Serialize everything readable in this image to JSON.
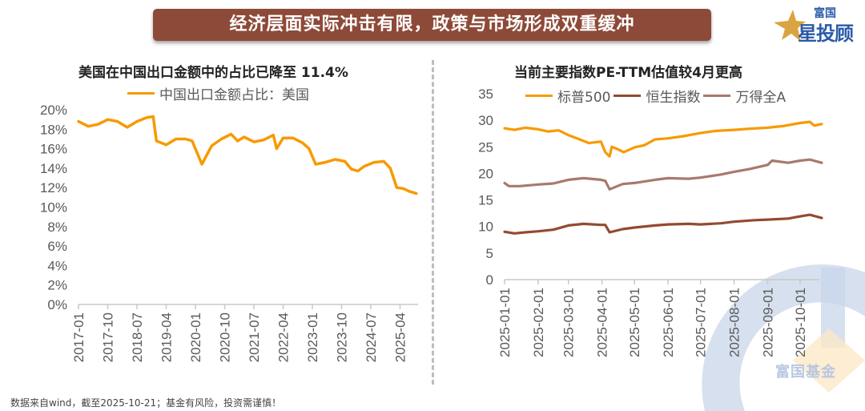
{
  "banner": {
    "title": "经济层面实际冲击有限，政策与市场形成双重缓冲"
  },
  "logo": {
    "line1": "富国",
    "line2": "星投顾",
    "star_color": "#d9a441",
    "text_color": "#2a5ba8"
  },
  "watermark": {
    "text": "富国基金"
  },
  "footer": {
    "text": "数据来自wind，截至2025-10-21；基金有风险，投资需谨慎！"
  },
  "colors": {
    "orange": "#f79a00",
    "dark_brown": "#944a30",
    "light_brown": "#a87a6c",
    "banner": "#8e4a38"
  },
  "chart_data": [
    {
      "type": "line",
      "title": "美国在中国出口金额中的占比已降至 11.4%",
      "xlabel": "",
      "ylabel": "",
      "ylim": [
        0,
        20
      ],
      "yticks": [
        "0%",
        "2%",
        "4%",
        "6%",
        "8%",
        "10%",
        "12%",
        "14%",
        "16%",
        "18%",
        "20%"
      ],
      "xticks": [
        "2017-01",
        "2017-10",
        "2018-07",
        "2019-04",
        "2020-01",
        "2020-10",
        "2021-07",
        "2022-04",
        "2023-01",
        "2023-10",
        "2024-07",
        "2025-04"
      ],
      "legend": "top-center",
      "grid": false,
      "series": [
        {
          "name": "中国出口金额占比：美国",
          "color": "#f79a00",
          "x": [
            "2017-01",
            "2017-04",
            "2017-07",
            "2017-10",
            "2018-01",
            "2018-04",
            "2018-07",
            "2018-10",
            "2018-12",
            "2019-01",
            "2019-04",
            "2019-07",
            "2019-10",
            "2019-12",
            "2020-03",
            "2020-06",
            "2020-09",
            "2020-12",
            "2021-02",
            "2021-04",
            "2021-07",
            "2021-10",
            "2022-01",
            "2022-02",
            "2022-04",
            "2022-07",
            "2022-10",
            "2022-12",
            "2023-02",
            "2023-05",
            "2023-08",
            "2023-11",
            "2024-01",
            "2024-03",
            "2024-05",
            "2024-08",
            "2024-11",
            "2025-01",
            "2025-03",
            "2025-05",
            "2025-07",
            "2025-09"
          ],
          "values": [
            18.8,
            18.3,
            18.5,
            19.0,
            18.8,
            18.2,
            18.8,
            19.2,
            19.3,
            16.8,
            16.4,
            17.0,
            17.0,
            16.8,
            14.4,
            16.3,
            17.0,
            17.5,
            16.8,
            17.2,
            16.7,
            16.9,
            17.4,
            16.0,
            17.1,
            17.1,
            16.6,
            16.0,
            14.4,
            14.6,
            14.9,
            14.7,
            13.9,
            13.7,
            14.2,
            14.6,
            14.7,
            14.0,
            12.0,
            11.9,
            11.6,
            11.4
          ]
        }
      ]
    },
    {
      "type": "line",
      "title": "当前主要指数PE-TTM估值较4月更高",
      "xlabel": "",
      "ylabel": "",
      "ylim": [
        0,
        35
      ],
      "yticks": [
        "0",
        "5",
        "10",
        "15",
        "20",
        "25",
        "30",
        "35"
      ],
      "xticks": [
        "2025-01-01",
        "2025-02-01",
        "2025-03-01",
        "2025-04-01",
        "2025-05-01",
        "2025-06-01",
        "2025-07-01",
        "2025-08-01",
        "2025-09-01",
        "2025-10-01"
      ],
      "legend": "top-right",
      "grid": false,
      "series": [
        {
          "name": "标普500",
          "color": "#f79a00",
          "x": [
            "2025-01-01",
            "2025-01-10",
            "2025-01-20",
            "2025-02-01",
            "2025-02-10",
            "2025-02-20",
            "2025-03-01",
            "2025-03-10",
            "2025-03-20",
            "2025-03-31",
            "2025-04-04",
            "2025-04-08",
            "2025-04-10",
            "2025-04-15",
            "2025-04-21",
            "2025-05-01",
            "2025-05-10",
            "2025-05-20",
            "2025-06-01",
            "2025-06-15",
            "2025-07-01",
            "2025-07-15",
            "2025-08-01",
            "2025-08-15",
            "2025-09-01",
            "2025-09-15",
            "2025-10-01",
            "2025-10-10",
            "2025-10-14",
            "2025-10-21"
          ],
          "values": [
            28.5,
            28.2,
            28.6,
            28.3,
            27.9,
            28.1,
            27.2,
            26.5,
            25.7,
            26.0,
            24.0,
            23.2,
            25.0,
            24.6,
            24.0,
            24.9,
            25.3,
            26.4,
            26.6,
            27.0,
            27.6,
            28.0,
            28.2,
            28.4,
            28.6,
            28.9,
            29.5,
            29.7,
            29.0,
            29.3
          ]
        },
        {
          "name": "恒生指数",
          "color": "#944a30",
          "x": [
            "2025-01-01",
            "2025-01-10",
            "2025-01-20",
            "2025-02-01",
            "2025-02-15",
            "2025-03-01",
            "2025-03-15",
            "2025-03-31",
            "2025-04-04",
            "2025-04-08",
            "2025-04-20",
            "2025-05-01",
            "2025-05-20",
            "2025-06-01",
            "2025-06-20",
            "2025-07-01",
            "2025-07-20",
            "2025-08-01",
            "2025-08-20",
            "2025-09-01",
            "2025-09-20",
            "2025-10-01",
            "2025-10-10",
            "2025-10-21"
          ],
          "values": [
            9.0,
            8.7,
            8.9,
            9.1,
            9.4,
            10.2,
            10.5,
            10.3,
            10.3,
            8.9,
            9.5,
            9.8,
            10.2,
            10.4,
            10.5,
            10.4,
            10.6,
            10.9,
            11.2,
            11.3,
            11.5,
            11.9,
            12.2,
            11.6
          ]
        },
        {
          "name": "万得全A",
          "color": "#a87a6c",
          "x": [
            "2025-01-01",
            "2025-01-05",
            "2025-01-15",
            "2025-02-01",
            "2025-02-15",
            "2025-03-01",
            "2025-03-15",
            "2025-03-31",
            "2025-04-04",
            "2025-04-08",
            "2025-04-20",
            "2025-05-01",
            "2025-05-20",
            "2025-06-01",
            "2025-06-20",
            "2025-07-01",
            "2025-07-20",
            "2025-08-01",
            "2025-08-15",
            "2025-09-01",
            "2025-09-05",
            "2025-09-20",
            "2025-10-01",
            "2025-10-10",
            "2025-10-21"
          ],
          "values": [
            18.2,
            17.6,
            17.6,
            17.9,
            18.1,
            18.8,
            19.1,
            18.8,
            18.6,
            17.0,
            18.0,
            18.2,
            18.8,
            19.1,
            19.0,
            19.2,
            19.8,
            20.3,
            20.8,
            21.6,
            22.4,
            22.0,
            22.4,
            22.6,
            22.0
          ]
        }
      ]
    }
  ]
}
